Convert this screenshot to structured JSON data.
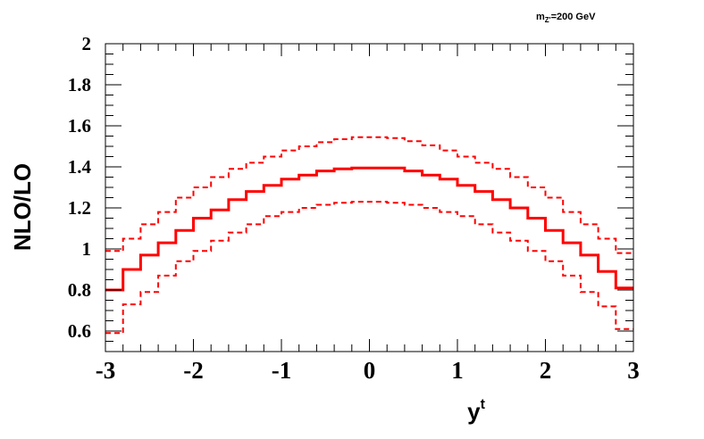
{
  "chart_data": {
    "type": "line",
    "title": "",
    "annotation": {
      "main": "m",
      "sub": "Z'",
      "rest": "=200 GeV"
    },
    "xlabel": {
      "main": "y",
      "sup": "t"
    },
    "ylabel": "NLO/LO",
    "xlim": [
      -3,
      3
    ],
    "ylim": [
      0.5,
      2.0
    ],
    "x_tick_labels": [
      "-3",
      "-2",
      "-1",
      "0",
      "1",
      "2",
      "3"
    ],
    "y_tick_labels": [
      "0.6",
      "0.8",
      "1",
      "1.2",
      "1.4",
      "1.6",
      "1.8",
      "2"
    ],
    "grid": false,
    "legend": "none",
    "bin_edges": [
      -3.0,
      -2.8,
      -2.6,
      -2.4,
      -2.2,
      -2.0,
      -1.8,
      -1.6,
      -1.4,
      -1.2,
      -1.0,
      -0.8,
      -0.6,
      -0.4,
      -0.2,
      0.0,
      0.2,
      0.4,
      0.6,
      0.8,
      1.0,
      1.2,
      1.4,
      1.6,
      1.8,
      2.0,
      2.2,
      2.4,
      2.6,
      2.8,
      3.0
    ],
    "series": [
      {
        "style": "solid",
        "color": "#ff0000",
        "values": [
          0.8,
          0.9,
          0.97,
          1.03,
          1.09,
          1.15,
          1.19,
          1.24,
          1.28,
          1.31,
          1.34,
          1.36,
          1.38,
          1.39,
          1.395,
          1.395,
          1.395,
          1.38,
          1.36,
          1.34,
          1.31,
          1.28,
          1.24,
          1.2,
          1.15,
          1.09,
          1.03,
          0.97,
          0.89,
          0.81
        ]
      },
      {
        "style": "dashed",
        "color": "#ff0000",
        "values": [
          0.99,
          1.05,
          1.12,
          1.18,
          1.25,
          1.3,
          1.35,
          1.39,
          1.42,
          1.45,
          1.48,
          1.5,
          1.52,
          1.535,
          1.545,
          1.545,
          1.54,
          1.525,
          1.505,
          1.48,
          1.45,
          1.42,
          1.39,
          1.35,
          1.3,
          1.25,
          1.18,
          1.12,
          1.05,
          0.98
        ]
      },
      {
        "style": "dashed",
        "color": "#ff0000",
        "values": [
          0.59,
          0.73,
          0.79,
          0.87,
          0.94,
          0.99,
          1.04,
          1.08,
          1.12,
          1.16,
          1.18,
          1.2,
          1.215,
          1.225,
          1.23,
          1.23,
          1.225,
          1.215,
          1.2,
          1.18,
          1.16,
          1.12,
          1.08,
          1.04,
          0.99,
          0.94,
          0.87,
          0.79,
          0.72,
          0.61
        ]
      }
    ]
  }
}
